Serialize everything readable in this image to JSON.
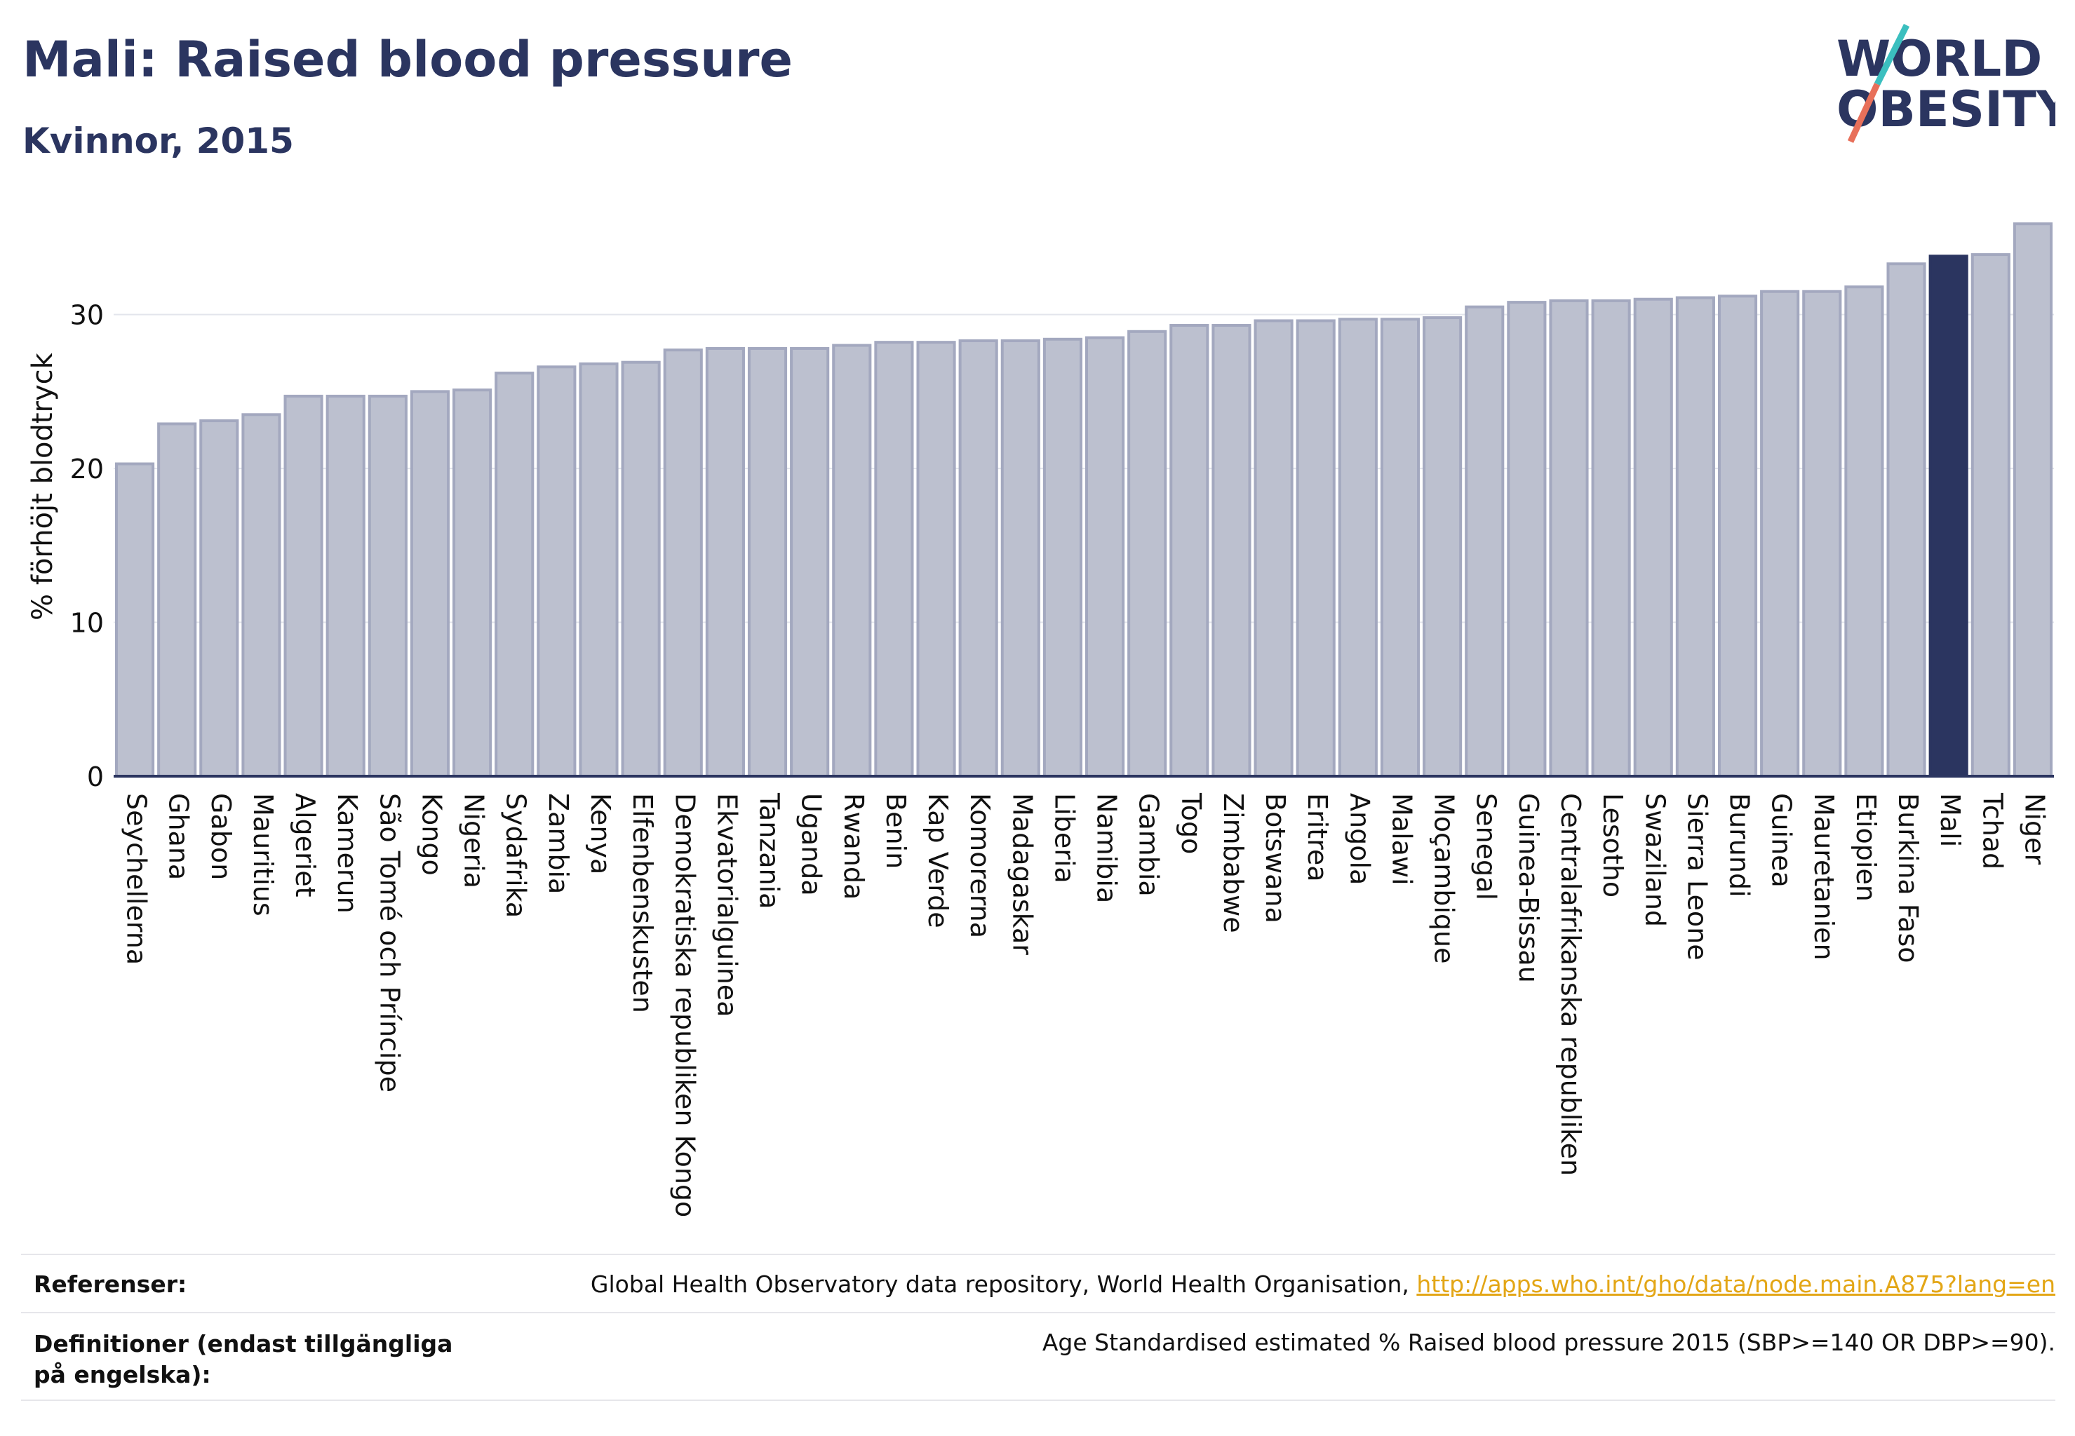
{
  "header": {
    "title": "Mali: Raised blood pressure",
    "subtitle": "Kvinnor, 2015"
  },
  "logo": {
    "line1": "WORLD",
    "line2": "OBESITY"
  },
  "colors": {
    "bar": "#bcc0cf",
    "bar_edge": "#a3a8bf",
    "highlight": "#2b3560",
    "grid": "#e3e5ec",
    "axis": "#2b3560",
    "link": "#e3a616"
  },
  "chart_data": {
    "type": "bar",
    "ylabel": "% förhöjt blodtryck",
    "ylim": [
      0,
      36
    ],
    "yticks": [
      0,
      10,
      20,
      30
    ],
    "grid": true,
    "highlight": "Mali",
    "categories": [
      "Seychellerna",
      "Ghana",
      "Gabon",
      "Mauritius",
      "Algeriet",
      "Kamerun",
      "São Tomé och Príncipe",
      "Kongo",
      "Nigeria",
      "Sydafrika",
      "Zambia",
      "Kenya",
      "Elfenbenskusten",
      "Demokratiska republiken Kongo",
      "Ekvatorialguinea",
      "Tanzania",
      "Uganda",
      "Rwanda",
      "Benin",
      "Kap Verde",
      "Komorerna",
      "Madagaskar",
      "Liberia",
      "Namibia",
      "Gambia",
      "Togo",
      "Zimbabwe",
      "Botswana",
      "Eritrea",
      "Angola",
      "Malawi",
      "Moçambique",
      "Senegal",
      "Guinea-Bissau",
      "Centralafrikanska republiken",
      "Lesotho",
      "Swaziland",
      "Sierra Leone",
      "Burundi",
      "Guinea",
      "Mauretanien",
      "Etiopien",
      "Burkina Faso",
      "Mali",
      "Tchad",
      "Niger"
    ],
    "values": [
      20.3,
      22.9,
      23.1,
      23.5,
      24.7,
      24.7,
      24.7,
      25.0,
      25.1,
      26.2,
      26.6,
      26.8,
      26.9,
      27.7,
      27.8,
      27.8,
      27.8,
      28.0,
      28.2,
      28.2,
      28.3,
      28.3,
      28.4,
      28.5,
      28.9,
      29.3,
      29.3,
      29.6,
      29.6,
      29.7,
      29.7,
      29.8,
      30.5,
      30.8,
      30.9,
      30.9,
      31.0,
      31.1,
      31.2,
      31.5,
      31.5,
      31.8,
      33.3,
      33.8,
      33.9,
      35.9
    ]
  },
  "footer": {
    "references_label": "Referenser:",
    "references_text": "Global Health Observatory data repository, World Health Organisation, ",
    "references_link": "http://apps.who.int/gho/data/node.main.A875?lang=en",
    "definitions_label": "Definitioner (endast tillgängliga på engelska):",
    "definitions_text": "Age Standardised estimated % Raised blood pressure 2015 (SBP>=140 OR DBP>=90)."
  }
}
